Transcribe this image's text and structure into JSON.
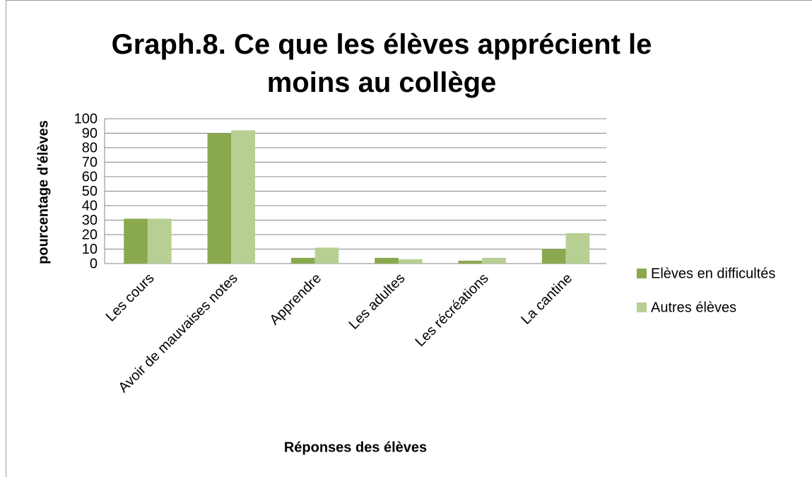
{
  "chart_data": {
    "type": "bar",
    "title": "Graph.8. Ce que les élèves apprécient le moins au collège",
    "y_label": "pourcentage d'élèves",
    "x_label": "Réponses des élèves",
    "categories": [
      "Les cours",
      "Avoir de mauvaises notes",
      "Apprendre",
      "Les adultes",
      "Les récréations",
      "La cantine"
    ],
    "series": [
      {
        "name": "Elèves en difficultés",
        "color": "#8aa94f",
        "values": [
          31,
          90,
          4,
          4,
          2,
          10
        ]
      },
      {
        "name": "Autres élèves",
        "color": "#b8cf93",
        "values": [
          31,
          92,
          11,
          3,
          4,
          21
        ]
      }
    ],
    "ylim": [
      0,
      100
    ],
    "yticks": [
      0,
      10,
      20,
      30,
      40,
      50,
      60,
      70,
      80,
      90,
      100
    ],
    "grid": true,
    "legend": "right"
  }
}
